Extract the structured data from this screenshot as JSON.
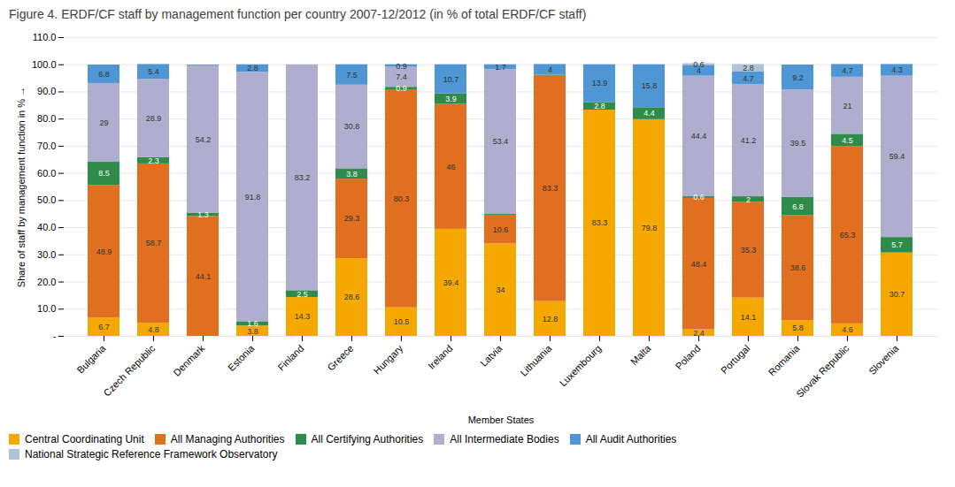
{
  "chart_data": {
    "type": "bar",
    "stacked": true,
    "title": "Figure 4. ERDF/CF staff by management function per country 2007-12/2012 (in % of total ERDF/CF staff)",
    "xlabel": "Member States",
    "ylabel": "Share of staff by management function in %",
    "categories": [
      "Bulgaria",
      "Czech Republic",
      "Denmark",
      "Estonia",
      "Finland",
      "Greece",
      "Hungary",
      "Ireland",
      "Latvia",
      "Lithuania",
      "Luxembourg",
      "Malta",
      "Poland",
      "Portugal",
      "Romania",
      "Slovak Republic",
      "Slovenia"
    ],
    "series": [
      {
        "name": "Central Coordinating Unit",
        "color": "#F5A800",
        "values": [
          6.7,
          4.8,
          0.0,
          3.8,
          14.3,
          28.6,
          10.5,
          39.4,
          34.0,
          12.8,
          83.3,
          79.8,
          2.4,
          14.1,
          5.8,
          4.6,
          30.7
        ],
        "value_labels": [
          "6.7",
          "4.8",
          null,
          "3.8",
          "14.3",
          "28.6",
          "10.5",
          "39.4",
          "34",
          "12.8",
          "83.3",
          "79.8",
          "2.4",
          "14.1",
          "5.8",
          "4.6",
          "30.7"
        ]
      },
      {
        "name": "All Managing Authorities",
        "color": "#E07020",
        "values": [
          48.9,
          58.7,
          44.1,
          0.0,
          0.0,
          29.3,
          80.3,
          46.0,
          10.6,
          83.3,
          0.0,
          0.0,
          48.4,
          35.3,
          38.6,
          65.3,
          0.0
        ],
        "value_labels": [
          "48.9",
          "58.7",
          "44.1",
          null,
          null,
          "29.3",
          "80.3",
          "46",
          "10.6",
          "83.3",
          null,
          null,
          "48.4",
          "35.3",
          "38.6",
          "65.3",
          null
        ]
      },
      {
        "name": "All Certifying Authorities",
        "color": "#2E8B4A",
        "values": [
          8.5,
          2.3,
          1.3,
          1.6,
          2.5,
          3.8,
          0.9,
          3.9,
          0.3,
          0.0,
          2.8,
          4.4,
          0.6,
          2.0,
          6.8,
          4.5,
          5.7
        ],
        "value_labels": [
          "8.5",
          "2.3",
          "1.3",
          "1.6",
          "2.5",
          "3.8",
          "0.9",
          "3.9",
          null,
          null,
          "2.8",
          "4.4",
          "0.6",
          "2",
          "6.8",
          "4.5",
          "5.7"
        ]
      },
      {
        "name": "All Intermediate Bodies",
        "color": "#B0AECE",
        "values": [
          29.0,
          28.9,
          54.2,
          91.8,
          83.2,
          30.8,
          7.4,
          0.0,
          53.4,
          0.0,
          0.0,
          0.0,
          44.4,
          41.2,
          39.5,
          21.0,
          59.4
        ],
        "value_labels": [
          "29",
          "28.9",
          "54.2",
          "91.8",
          "83.2",
          "30.8",
          "7.4",
          null,
          "53.4",
          null,
          null,
          null,
          "44.4",
          "41.2",
          "39.5",
          "21",
          "59.4"
        ]
      },
      {
        "name": "All Audit Authorities",
        "color": "#4F96D4",
        "values": [
          6.8,
          5.4,
          0.3,
          2.8,
          0.0,
          7.5,
          0.9,
          10.7,
          1.7,
          4.0,
          13.9,
          15.8,
          4.0,
          4.7,
          9.2,
          4.7,
          4.3
        ],
        "value_labels": [
          "6.8",
          "5.4",
          null,
          "2.8",
          null,
          "7.5",
          "0.9",
          "10.7",
          "1.7",
          "4",
          "13.9",
          "15.8",
          "4",
          "4.7",
          "9.2",
          "4.7",
          "4.3"
        ]
      },
      {
        "name": "National Strategic Reference Framework Observatory",
        "color": "#B0C4D8",
        "values": [
          0.0,
          0.0,
          0.0,
          0.0,
          0.0,
          0.0,
          0.0,
          0.0,
          0.0,
          0.0,
          0.0,
          0.0,
          0.6,
          2.8,
          0.0,
          0.0,
          0.0
        ],
        "value_labels": [
          null,
          null,
          null,
          null,
          null,
          null,
          null,
          null,
          null,
          null,
          null,
          null,
          "0.6",
          "2.8",
          null,
          null,
          null
        ]
      }
    ],
    "ylim": [
      0,
      110
    ],
    "yticks": [
      {
        "value": 0,
        "label": "-"
      },
      {
        "value": 10,
        "label": "10.0"
      },
      {
        "value": 20,
        "label": "20.0"
      },
      {
        "value": 30,
        "label": "30.0"
      },
      {
        "value": 40,
        "label": "40.0"
      },
      {
        "value": 50,
        "label": "50.0"
      },
      {
        "value": 60,
        "label": "60.0"
      },
      {
        "value": 70,
        "label": "70.0"
      },
      {
        "value": 80,
        "label": "80.0"
      },
      {
        "value": 90,
        "label": "90.0"
      },
      {
        "value": 100,
        "label": "100.0"
      },
      {
        "value": 110,
        "label": "110.0"
      }
    ],
    "grid": true,
    "legend": "bottom",
    "data_labels": true
  }
}
